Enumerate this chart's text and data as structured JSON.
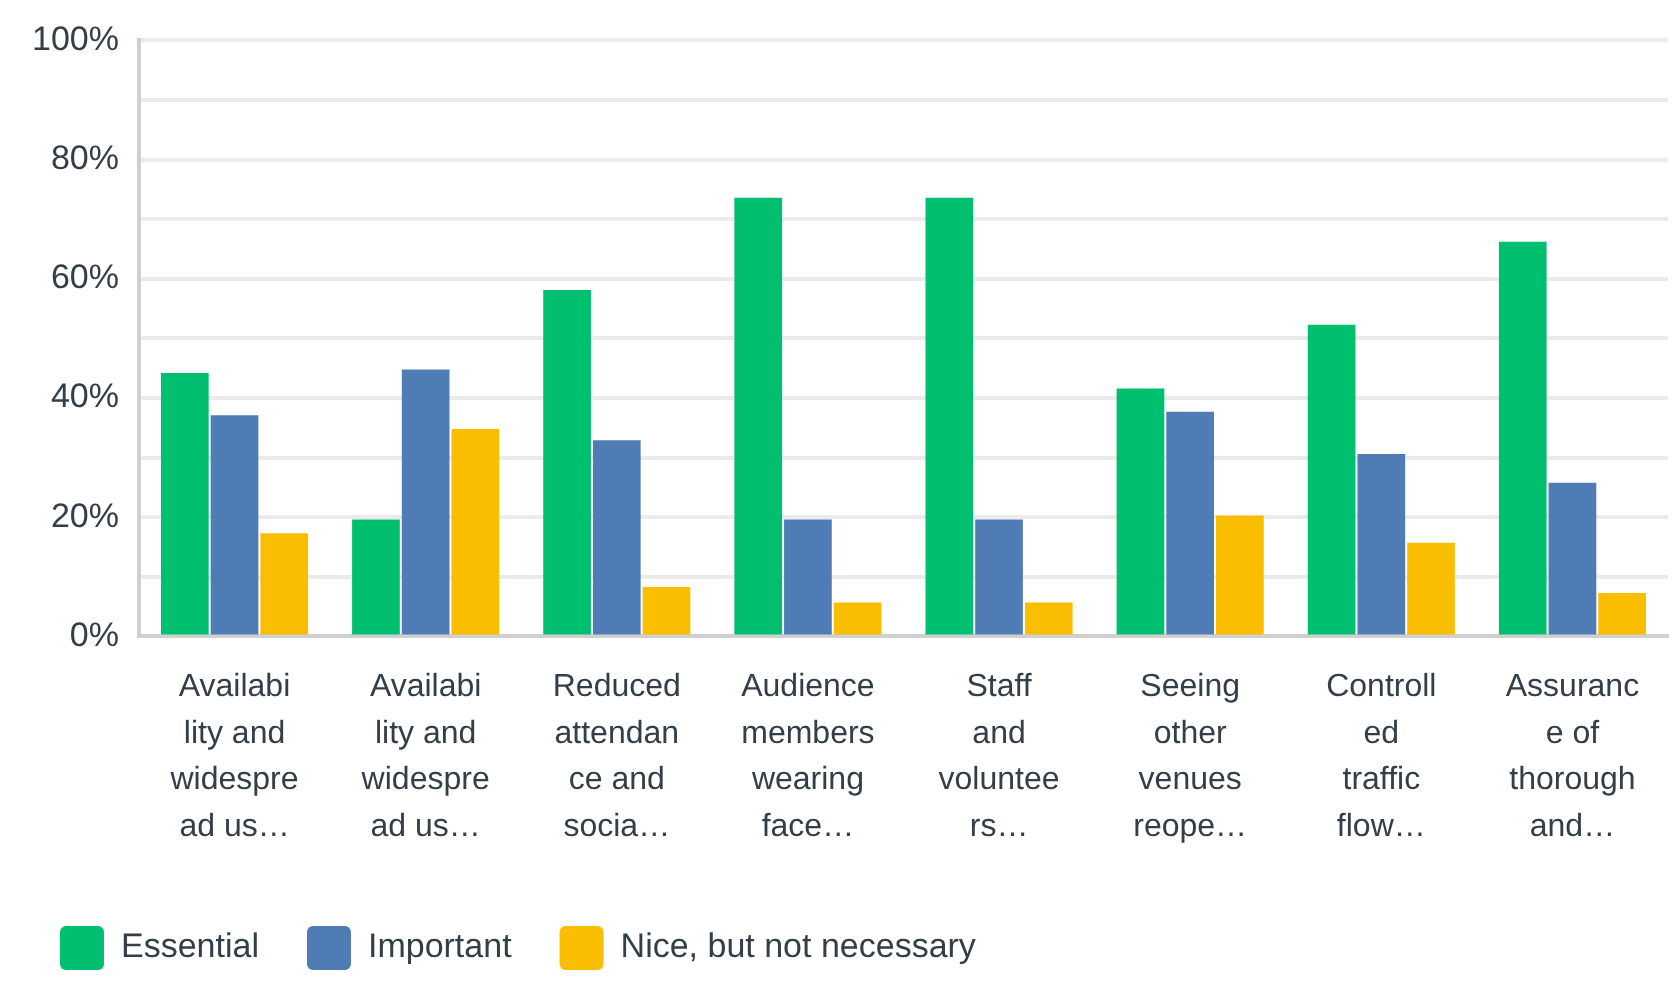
{
  "chart_data": {
    "type": "bar",
    "categories": [
      "Availabi\nlity and\nwidespre\nad us…",
      "Availabi\nlity and\nwidespre\nad us…",
      "Reduced\nattendan\nce and\nsocia…",
      "Audience\nmembers\nwearing\nface…",
      "Staff\nand\nvoluntee\nrs…",
      "Seeing\nother\nvenues\nreope…",
      "Controll\ned\ntraffic\nflow…",
      "Assuranc\ne of\nthorough\nand…"
    ],
    "series": [
      {
        "name": "Essential",
        "color": "#00bf6f",
        "values": [
          44.2,
          19.6,
          58.1,
          73.6,
          73.6,
          41.6,
          52.3,
          66.2
        ]
      },
      {
        "name": "Important",
        "color": "#507cb6",
        "values": [
          37.1,
          44.8,
          32.9,
          19.6,
          19.6,
          37.7,
          30.6,
          25.8
        ]
      },
      {
        "name": "Nice, but not necessary",
        "color": "#f9be00",
        "values": [
          17.3,
          34.8,
          8.3,
          5.7,
          5.7,
          20.3,
          15.7,
          7.3
        ]
      }
    ],
    "ylim": [
      0,
      100
    ],
    "yticks": [
      {
        "value": 0,
        "label": "0%"
      },
      {
        "value": 10,
        "label": null
      },
      {
        "value": 20,
        "label": "20%"
      },
      {
        "value": 30,
        "label": null
      },
      {
        "value": 40,
        "label": "40%"
      },
      {
        "value": 50,
        "label": null
      },
      {
        "value": 60,
        "label": "60%"
      },
      {
        "value": 70,
        "label": null
      },
      {
        "value": 80,
        "label": "80%"
      },
      {
        "value": 90,
        "label": null
      },
      {
        "value": 100,
        "label": "100%"
      }
    ],
    "grid": "y",
    "legend": "bottom left"
  }
}
